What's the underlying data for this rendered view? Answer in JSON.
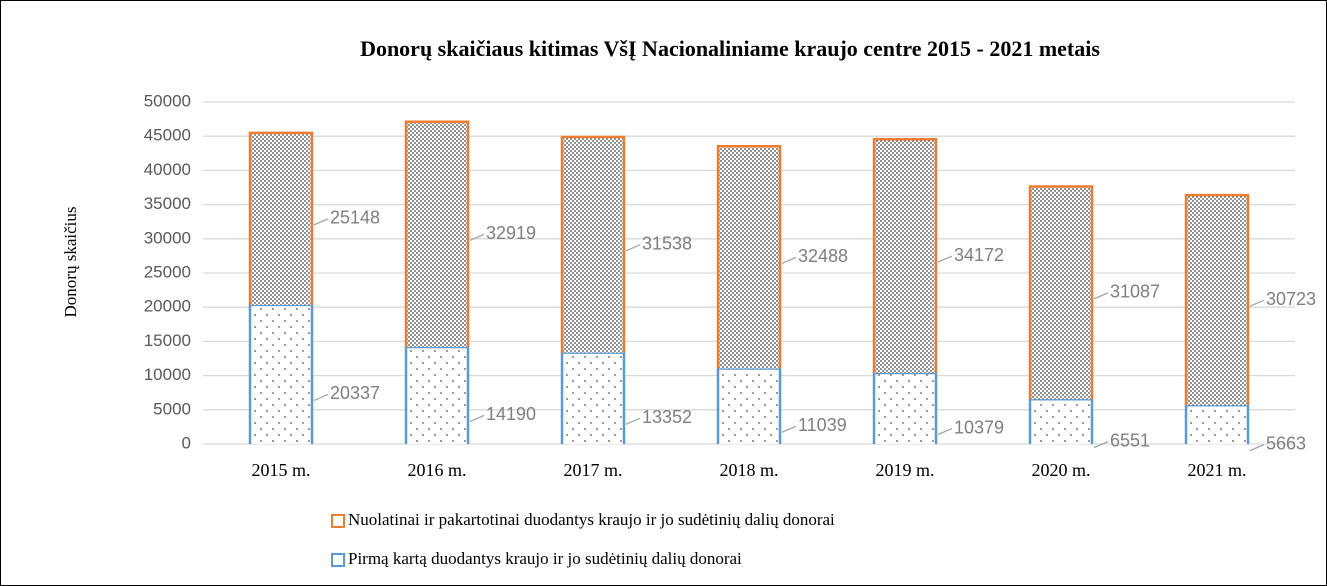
{
  "chart_data": {
    "type": "bar",
    "stacked": true,
    "title": "Donorų skaičiaus  kitimas  VšĮ Nacionaliniame  kraujo  centre 2015 - 2021 metais",
    "y_label": "Donorų skaičius",
    "categories": [
      "2015 m.",
      "2016 m.",
      "2017 m.",
      "2018 m.",
      "2019 m.",
      "2020 m.",
      "2021 m."
    ],
    "series": [
      {
        "name": "Pirmą kartą duodantys kraujo ir jo sudėtinių dalių donorai",
        "color": "#5b9bd5",
        "values": [
          20337,
          14190,
          13352,
          11039,
          10379,
          6551,
          5663
        ]
      },
      {
        "name": "Nuolatinai ir pakartotinai duodantys kraujo ir jo sudėtinių dalių donorai",
        "color": "#ed7d31",
        "values": [
          25148,
          32919,
          31538,
          32488,
          34172,
          31087,
          30723
        ]
      }
    ],
    "ylim": [
      0,
      50000
    ],
    "yticks": [
      0,
      5000,
      10000,
      15000,
      20000,
      25000,
      30000,
      35000,
      40000,
      45000,
      50000
    ],
    "grid": true,
    "legend": "bottom"
  }
}
